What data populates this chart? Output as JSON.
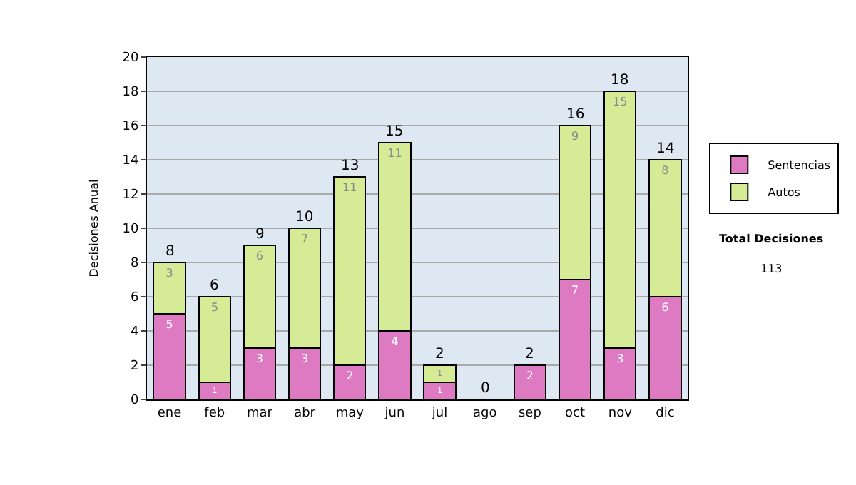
{
  "chart_data": {
    "type": "bar",
    "stacked": true,
    "ylabel": "Decisiones Anual",
    "categories": [
      "ene",
      "feb",
      "mar",
      "abr",
      "may",
      "jun",
      "jul",
      "ago",
      "sep",
      "oct",
      "nov",
      "dic"
    ],
    "series": [
      {
        "name": "Sentencias",
        "color": "#dd7ac2",
        "values": [
          5,
          1,
          3,
          3,
          2,
          4,
          1,
          0,
          2,
          7,
          3,
          6
        ],
        "value_labels": [
          "5",
          "1",
          "3",
          "3",
          "2",
          "4",
          "1",
          null,
          "2",
          "7",
          "3",
          "6"
        ]
      },
      {
        "name": "Autos",
        "color": "#d5eb96",
        "values": [
          3,
          5,
          6,
          7,
          11,
          11,
          1,
          0,
          0,
          9,
          15,
          8
        ],
        "value_labels": [
          "3",
          "5",
          "6",
          "7",
          "11",
          "11",
          "1",
          null,
          null,
          "9",
          "15",
          "8"
        ]
      }
    ],
    "totals": [
      "8",
      "6",
      "9",
      "10",
      "13",
      "15",
      "2",
      "0",
      "2",
      "16",
      "18",
      "14"
    ],
    "ylim": [
      0,
      20
    ],
    "yticks": [
      0,
      2,
      4,
      6,
      8,
      10,
      12,
      14,
      16,
      18,
      20
    ],
    "grid": "y",
    "legend": "right",
    "annotations": [
      "Total Decisiones",
      "113"
    ]
  }
}
